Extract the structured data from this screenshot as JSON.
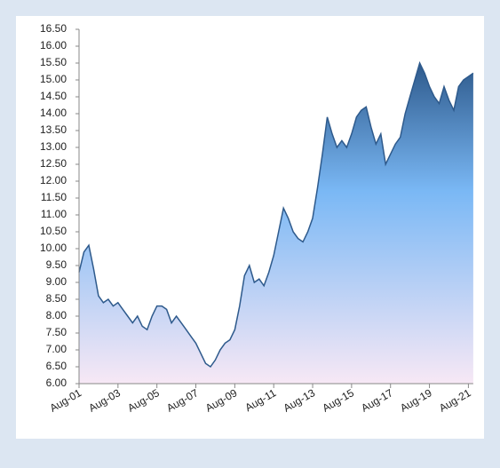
{
  "chart_data": {
    "type": "area",
    "categories": [
      "Aug-01",
      null,
      null,
      null,
      null,
      null,
      null,
      null,
      "Aug-03",
      null,
      null,
      null,
      null,
      null,
      null,
      null,
      "Aug-05",
      null,
      null,
      null,
      null,
      null,
      null,
      null,
      "Aug-07",
      null,
      null,
      null,
      null,
      null,
      null,
      null,
      "Aug-09",
      null,
      null,
      null,
      null,
      null,
      null,
      null,
      "Aug-11",
      null,
      null,
      null,
      null,
      null,
      null,
      null,
      "Aug-13",
      null,
      null,
      null,
      null,
      null,
      null,
      null,
      "Aug-15",
      null,
      null,
      null,
      null,
      null,
      null,
      null,
      "Aug-17",
      null,
      null,
      null,
      null,
      null,
      null,
      null,
      "Aug-19",
      null,
      null,
      null,
      null,
      null,
      null,
      null,
      "Aug-21",
      null
    ],
    "values": [
      9.3,
      9.9,
      10.1,
      9.4,
      8.6,
      8.4,
      8.5,
      8.3,
      8.4,
      8.2,
      8.0,
      7.8,
      8.0,
      7.7,
      7.6,
      8.0,
      8.3,
      8.3,
      8.2,
      7.8,
      8.0,
      7.8,
      7.6,
      7.4,
      7.2,
      6.9,
      6.6,
      6.5,
      6.7,
      7.0,
      7.2,
      7.3,
      7.6,
      8.3,
      9.2,
      9.5,
      9.0,
      9.1,
      8.9,
      9.3,
      9.8,
      10.5,
      11.2,
      10.9,
      10.5,
      10.3,
      10.2,
      10.5,
      10.9,
      11.8,
      12.8,
      13.9,
      13.4,
      13.0,
      13.2,
      13.0,
      13.4,
      13.9,
      14.1,
      14.2,
      13.6,
      13.1,
      13.4,
      12.5,
      12.8,
      13.1,
      13.3,
      14.0,
      14.5,
      15.0,
      15.5,
      15.2,
      14.8,
      14.5,
      14.3,
      14.8,
      14.4,
      14.1,
      14.8,
      15.0,
      15.1,
      15.2
    ],
    "color": "#2e5a8c",
    "ylim": [
      6,
      16.5
    ],
    "yticks": [
      {
        "value": 6,
        "label": "6.00"
      },
      {
        "value": 6.5,
        "label": "6.50"
      },
      {
        "value": 7,
        "label": "7.00"
      },
      {
        "value": 7.5,
        "label": "7.50"
      },
      {
        "value": 8,
        "label": "8.00"
      },
      {
        "value": 8.5,
        "label": "8.50"
      },
      {
        "value": 9,
        "label": "9.00"
      },
      {
        "value": 9.5,
        "label": "9.50"
      },
      {
        "value": 10,
        "label": "10.00"
      },
      {
        "value": 10.5,
        "label": "10.50"
      },
      {
        "value": 11,
        "label": "11.00"
      },
      {
        "value": 11.5,
        "label": "11.50"
      },
      {
        "value": 12,
        "label": "12.00"
      },
      {
        "value": 12.5,
        "label": "12.50"
      },
      {
        "value": 13,
        "label": "13.00"
      },
      {
        "value": 13.5,
        "label": "13.50"
      },
      {
        "value": 14,
        "label": "14.00"
      },
      {
        "value": 14.5,
        "label": "14.50"
      },
      {
        "value": 15,
        "label": "15.00"
      },
      {
        "value": 15.5,
        "label": "15.50"
      },
      {
        "value": 16,
        "label": "16.00"
      },
      {
        "value": 16.5,
        "label": "16.50"
      }
    ]
  }
}
